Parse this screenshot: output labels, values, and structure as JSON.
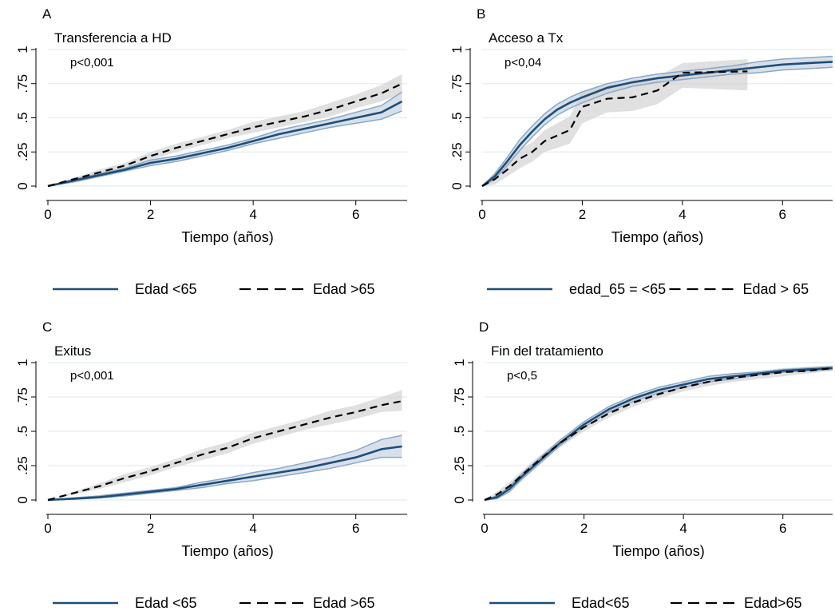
{
  "colors": {
    "series_solid": "#1d4e79",
    "series_ci": "#8aa8c6",
    "ci_fill": "#c9d6e3",
    "series_dashed": "#000000",
    "dashed_ci_fill": "#cfcfcf",
    "gridline": "#e2eef0",
    "background": "#ffffff"
  },
  "chart_data": [
    {
      "id": "A",
      "type": "line",
      "panel_label": "A",
      "title": "Transferencia a HD",
      "annotation": "p<0,001",
      "xlabel": "Tiempo (años)",
      "ylabel": "",
      "xlim": [
        0,
        7
      ],
      "ylim": [
        0,
        1
      ],
      "x_ticks": [
        "0",
        "2",
        "4",
        "6"
      ],
      "y_ticks": [
        "0",
        ".25",
        ".5",
        ".75",
        "1"
      ],
      "grid": true,
      "legend_position": "bottom",
      "series": [
        {
          "name": "Edad <65",
          "style": "solid",
          "x": [
            0,
            0.5,
            1,
            1.5,
            2,
            2.5,
            3,
            3.5,
            4,
            4.5,
            5,
            5.5,
            6,
            6.5,
            6.9
          ],
          "y": [
            0,
            0.04,
            0.08,
            0.12,
            0.17,
            0.2,
            0.24,
            0.28,
            0.33,
            0.38,
            0.42,
            0.46,
            0.5,
            0.54,
            0.62
          ],
          "ci_lower": [
            0,
            0.03,
            0.07,
            0.11,
            0.15,
            0.18,
            0.22,
            0.26,
            0.31,
            0.35,
            0.39,
            0.43,
            0.46,
            0.49,
            0.55
          ],
          "ci_upper": [
            0,
            0.05,
            0.09,
            0.13,
            0.19,
            0.22,
            0.26,
            0.3,
            0.35,
            0.41,
            0.45,
            0.49,
            0.54,
            0.59,
            0.69
          ]
        },
        {
          "name": "Edad >65",
          "style": "dashed",
          "x": [
            0,
            0.5,
            1,
            1.5,
            2,
            2.5,
            3,
            3.5,
            4,
            4.5,
            5,
            5.5,
            6,
            6.5,
            6.9
          ],
          "y": [
            0,
            0.05,
            0.1,
            0.15,
            0.22,
            0.28,
            0.33,
            0.38,
            0.43,
            0.47,
            0.51,
            0.56,
            0.62,
            0.68,
            0.75
          ],
          "ci_lower": [
            0,
            0.04,
            0.08,
            0.13,
            0.19,
            0.25,
            0.3,
            0.35,
            0.39,
            0.43,
            0.47,
            0.51,
            0.57,
            0.62,
            0.68
          ],
          "ci_upper": [
            0,
            0.06,
            0.12,
            0.17,
            0.25,
            0.31,
            0.36,
            0.41,
            0.47,
            0.51,
            0.55,
            0.61,
            0.67,
            0.74,
            0.82
          ]
        }
      ]
    },
    {
      "id": "B",
      "type": "line",
      "panel_label": "B",
      "title": "Acceso a Tx",
      "annotation": "p<0,04",
      "xlabel": "Tiempo (años)",
      "ylabel": "",
      "xlim": [
        0,
        7
      ],
      "ylim": [
        0,
        1
      ],
      "x_ticks": [
        "0",
        "2",
        "4",
        "6"
      ],
      "y_ticks": [
        "0",
        ".25",
        ".5",
        ".75",
        "1"
      ],
      "grid": true,
      "legend_position": "bottom",
      "series": [
        {
          "name": "edad_65 = <65",
          "style": "solid",
          "x": [
            0,
            0.25,
            0.5,
            0.75,
            1,
            1.25,
            1.5,
            1.75,
            2,
            2.5,
            3,
            3.5,
            4,
            4.5,
            5,
            5.5,
            6,
            6.5,
            7
          ],
          "y": [
            0,
            0.07,
            0.18,
            0.3,
            0.4,
            0.49,
            0.56,
            0.61,
            0.65,
            0.72,
            0.76,
            0.79,
            0.81,
            0.83,
            0.85,
            0.87,
            0.89,
            0.9,
            0.91
          ],
          "ci_lower": [
            0,
            0.05,
            0.15,
            0.26,
            0.36,
            0.45,
            0.52,
            0.57,
            0.61,
            0.68,
            0.73,
            0.76,
            0.78,
            0.8,
            0.82,
            0.83,
            0.85,
            0.86,
            0.87
          ],
          "ci_upper": [
            0,
            0.09,
            0.21,
            0.34,
            0.44,
            0.53,
            0.6,
            0.65,
            0.69,
            0.75,
            0.79,
            0.82,
            0.84,
            0.86,
            0.88,
            0.91,
            0.93,
            0.94,
            0.95
          ]
        },
        {
          "name": "Edad > 65",
          "style": "dashed",
          "x": [
            0,
            0.25,
            0.5,
            0.75,
            1,
            1.25,
            1.5,
            1.75,
            2,
            2.5,
            3,
            3.5,
            4,
            5.3
          ],
          "y": [
            0,
            0.05,
            0.12,
            0.2,
            0.25,
            0.33,
            0.37,
            0.41,
            0.58,
            0.64,
            0.65,
            0.7,
            0.83,
            0.84
          ],
          "ci_lower": [
            0,
            0.01,
            0.07,
            0.13,
            0.18,
            0.25,
            0.28,
            0.31,
            0.46,
            0.54,
            0.55,
            0.6,
            0.72,
            0.7
          ],
          "ci_upper": [
            0,
            0.09,
            0.17,
            0.27,
            0.32,
            0.41,
            0.46,
            0.51,
            0.69,
            0.74,
            0.75,
            0.8,
            0.9,
            0.93
          ]
        }
      ]
    },
    {
      "id": "C",
      "type": "line",
      "panel_label": "C",
      "title": "Exitus",
      "annotation": "p<0,001",
      "xlabel": "Tiempo (años)",
      "ylabel": "",
      "xlim": [
        0,
        7
      ],
      "ylim": [
        0,
        1
      ],
      "x_ticks": [
        "0",
        "2",
        "4",
        "6"
      ],
      "y_ticks": [
        "0",
        ".25",
        ".5",
        ".75",
        "1"
      ],
      "grid": true,
      "legend_position": "bottom",
      "series": [
        {
          "name": "Edad <65",
          "style": "solid",
          "x": [
            0,
            0.5,
            1,
            1.5,
            2,
            2.5,
            3,
            3.5,
            4,
            4.5,
            5,
            5.5,
            6,
            6.5,
            6.9
          ],
          "y": [
            0,
            0.01,
            0.02,
            0.04,
            0.06,
            0.08,
            0.11,
            0.14,
            0.17,
            0.2,
            0.23,
            0.27,
            0.31,
            0.37,
            0.39
          ],
          "ci_lower": [
            0,
            0.005,
            0.015,
            0.03,
            0.05,
            0.07,
            0.09,
            0.12,
            0.14,
            0.17,
            0.2,
            0.23,
            0.27,
            0.31,
            0.31
          ],
          "ci_upper": [
            0,
            0.015,
            0.03,
            0.05,
            0.07,
            0.09,
            0.13,
            0.16,
            0.2,
            0.23,
            0.27,
            0.31,
            0.36,
            0.44,
            0.47
          ]
        },
        {
          "name": "Edad >65",
          "style": "dashed",
          "x": [
            0,
            0.5,
            1,
            1.5,
            2,
            2.5,
            3,
            3.5,
            4,
            4.5,
            5,
            5.5,
            6,
            6.5,
            6.9
          ],
          "y": [
            0,
            0.05,
            0.1,
            0.16,
            0.21,
            0.27,
            0.33,
            0.38,
            0.45,
            0.5,
            0.55,
            0.6,
            0.64,
            0.69,
            0.72
          ],
          "ci_lower": [
            0,
            0.04,
            0.08,
            0.13,
            0.18,
            0.24,
            0.29,
            0.34,
            0.41,
            0.46,
            0.51,
            0.55,
            0.59,
            0.64,
            0.65
          ],
          "ci_upper": [
            0,
            0.06,
            0.12,
            0.19,
            0.24,
            0.3,
            0.37,
            0.42,
            0.49,
            0.54,
            0.59,
            0.65,
            0.69,
            0.75,
            0.8
          ]
        }
      ]
    },
    {
      "id": "D",
      "type": "line",
      "panel_label": "D",
      "title": "Fin del tratamiento",
      "annotation": "p<0,5",
      "xlabel": "Tiempo (años)",
      "ylabel": "",
      "xlim": [
        0,
        7
      ],
      "ylim": [
        0,
        1
      ],
      "x_ticks": [
        "0",
        "2",
        "4",
        "6"
      ],
      "y_ticks": [
        "0",
        ".25",
        ".5",
        ".75",
        "1"
      ],
      "grid": true,
      "legend_position": "bottom",
      "series": [
        {
          "name": "Edad<65",
          "style": "solid",
          "x": [
            0,
            0.25,
            0.5,
            0.75,
            1,
            1.5,
            2,
            2.5,
            3,
            3.5,
            4,
            4.5,
            5,
            5.5,
            6,
            6.5,
            7
          ],
          "y": [
            0,
            0.02,
            0.08,
            0.17,
            0.25,
            0.41,
            0.55,
            0.66,
            0.74,
            0.8,
            0.84,
            0.88,
            0.9,
            0.92,
            0.94,
            0.95,
            0.96
          ],
          "ci_lower": [
            0,
            0.01,
            0.06,
            0.15,
            0.23,
            0.39,
            0.53,
            0.64,
            0.72,
            0.78,
            0.82,
            0.86,
            0.88,
            0.91,
            0.93,
            0.94,
            0.95
          ],
          "ci_upper": [
            0,
            0.03,
            0.1,
            0.19,
            0.27,
            0.43,
            0.57,
            0.68,
            0.76,
            0.82,
            0.86,
            0.9,
            0.92,
            0.93,
            0.95,
            0.96,
            0.97
          ]
        },
        {
          "name": "Edad>65",
          "style": "dashed",
          "x": [
            0,
            0.25,
            0.5,
            0.75,
            1,
            1.5,
            2,
            2.5,
            3,
            3.5,
            4,
            4.5,
            5,
            5.5,
            6,
            6.5,
            7
          ],
          "y": [
            0,
            0.04,
            0.1,
            0.18,
            0.26,
            0.41,
            0.53,
            0.63,
            0.71,
            0.77,
            0.82,
            0.86,
            0.89,
            0.91,
            0.93,
            0.94,
            0.96
          ],
          "ci_lower": [
            0,
            0.02,
            0.07,
            0.15,
            0.23,
            0.38,
            0.5,
            0.6,
            0.68,
            0.74,
            0.79,
            0.83,
            0.86,
            0.88,
            0.9,
            0.92,
            0.94
          ],
          "ci_upper": [
            0,
            0.06,
            0.13,
            0.21,
            0.29,
            0.44,
            0.56,
            0.66,
            0.74,
            0.8,
            0.85,
            0.89,
            0.92,
            0.94,
            0.96,
            0.97,
            0.98
          ]
        }
      ]
    }
  ]
}
